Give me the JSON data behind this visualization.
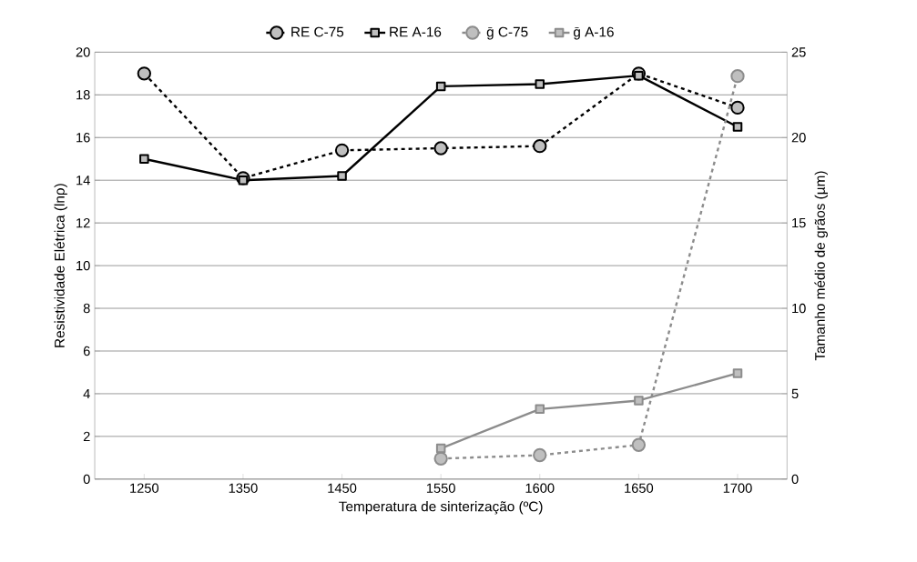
{
  "chart_data": {
    "type": "line",
    "xlabel": "Temperatura de sinterização (ºC)",
    "ylabel": "Resistividade Elétrica (lnρ)",
    "y2label": "Tamanho médio de grãos (µm)",
    "categories": [
      "1250",
      "1350",
      "1450",
      "1550",
      "1600",
      "1650",
      "1700"
    ],
    "series": [
      {
        "name": "RE C-75",
        "color": "#000000",
        "marker": "circle",
        "line_style": "dashed",
        "values": [
          19.0,
          14.1,
          15.4,
          15.5,
          15.6,
          19.0,
          17.4
        ]
      },
      {
        "name": "RE A-16",
        "color": "#000000",
        "marker": "square",
        "line_style": "solid",
        "values": [
          15.0,
          14.0,
          14.2,
          18.4,
          18.5,
          18.9,
          16.5
        ]
      },
      {
        "name": "ḡ C-75",
        "color": "#8c8c8c",
        "marker": "circle",
        "line_style": "dashed",
        "axis": "y2",
        "values": [
          null,
          null,
          null,
          1.2,
          1.4,
          2.0,
          23.6
        ]
      },
      {
        "name": "ḡ A-16",
        "color": "#8c8c8c",
        "marker": "square",
        "line_style": "solid",
        "axis": "y2",
        "values": [
          null,
          null,
          null,
          1.8,
          4.1,
          4.6,
          6.2
        ]
      }
    ],
    "ylim": [
      0,
      20
    ],
    "yticks": [
      0,
      2,
      4,
      6,
      8,
      10,
      12,
      14,
      16,
      18,
      20
    ],
    "y2lim": [
      0,
      25
    ],
    "y2ticks": [
      0,
      5,
      10,
      15,
      20,
      25
    ],
    "grid": "y",
    "legend": "top"
  }
}
